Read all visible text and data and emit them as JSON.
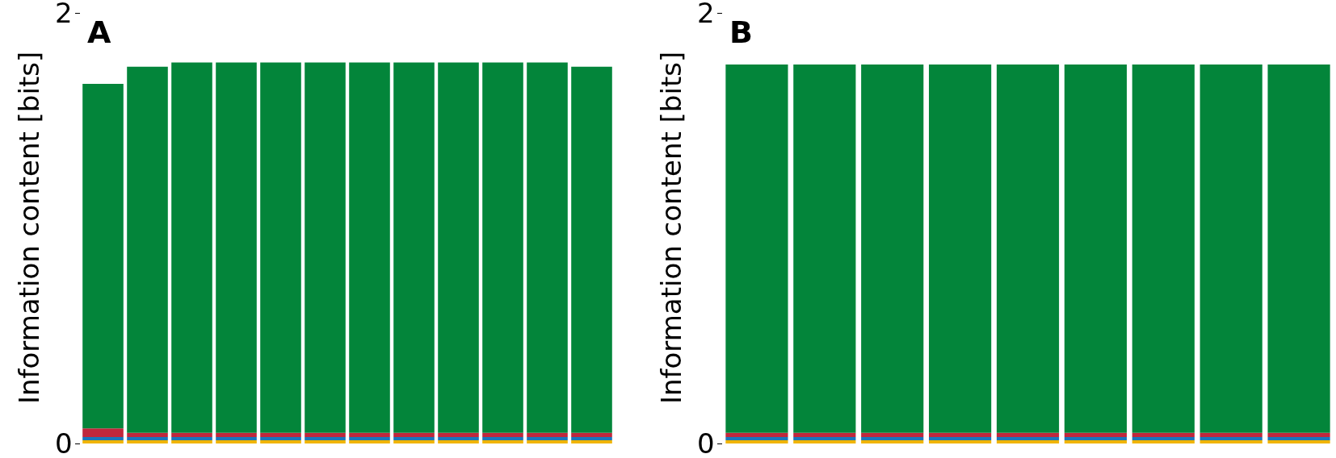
{
  "chart_data": [
    {
      "type": "bar",
      "title": "A",
      "ylabel": "Information content [bits]",
      "stacked": true,
      "categories": [
        null,
        null,
        null,
        null,
        null,
        null,
        null,
        null,
        null,
        null,
        null,
        null
      ],
      "ylim": [
        0,
        2
      ],
      "yticks": [
        0,
        2
      ],
      "tick_labels": "y",
      "series": [
        {
          "color": "#f0b400",
          "values": [
            0.015,
            0.015,
            0.015,
            0.015,
            0.015,
            0.015,
            0.015,
            0.015,
            0.015,
            0.015,
            0.015,
            0.015
          ]
        },
        {
          "color": "#1a75bb",
          "values": [
            0.015,
            0.015,
            0.015,
            0.015,
            0.015,
            0.015,
            0.015,
            0.015,
            0.015,
            0.015,
            0.015,
            0.015
          ]
        },
        {
          "color": "#c0273c",
          "values": [
            0.04,
            0.02,
            0.02,
            0.02,
            0.02,
            0.02,
            0.02,
            0.02,
            0.02,
            0.02,
            0.02,
            0.02
          ]
        },
        {
          "color": "#03853a",
          "values": [
            1.6,
            1.7,
            1.72,
            1.72,
            1.72,
            1.72,
            1.72,
            1.72,
            1.72,
            1.72,
            1.72,
            1.7
          ]
        }
      ]
    },
    {
      "type": "bar",
      "title": "B",
      "ylabel": "Information content [bits]",
      "stacked": true,
      "categories": [
        null,
        null,
        null,
        null,
        null,
        null,
        null,
        null,
        null
      ],
      "ylim": [
        0,
        2
      ],
      "yticks": [
        0,
        2
      ],
      "tick_labels": "y",
      "series": [
        {
          "color": "#f0b400",
          "values": [
            0.015,
            0.015,
            0.015,
            0.015,
            0.015,
            0.015,
            0.015,
            0.015,
            0.015
          ]
        },
        {
          "color": "#1a75bb",
          "values": [
            0.015,
            0.015,
            0.015,
            0.015,
            0.015,
            0.015,
            0.015,
            0.015,
            0.015
          ]
        },
        {
          "color": "#c0273c",
          "values": [
            0.02,
            0.02,
            0.02,
            0.02,
            0.02,
            0.02,
            0.02,
            0.02,
            0.02
          ]
        },
        {
          "color": "#03853a",
          "values": [
            1.71,
            1.71,
            1.71,
            1.71,
            1.71,
            1.71,
            1.71,
            1.71,
            1.71
          ]
        }
      ]
    }
  ]
}
